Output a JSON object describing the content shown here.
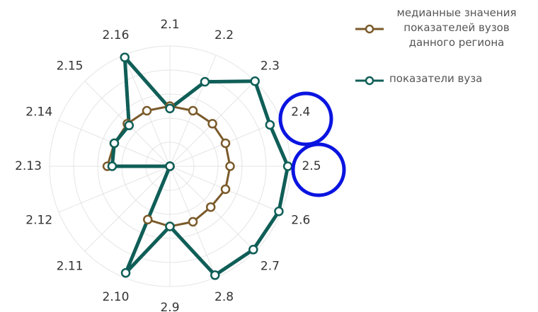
{
  "chart_data": {
    "type": "radar",
    "categories": [
      "2.1",
      "2.2",
      "2.3",
      "2.4",
      "2.5",
      "2.6",
      "2.7",
      "2.8",
      "2.9",
      "2.10",
      "2.11",
      "2.12",
      "2.13",
      "2.14",
      "2.15",
      "2.16"
    ],
    "rlim": [
      0,
      5
    ],
    "grid": true,
    "series": [
      {
        "name": "медианные значения показателей вузов данного региона",
        "color": "#7a5a2a",
        "values": [
          2.5,
          2.5,
          2.5,
          2.5,
          2.5,
          2.5,
          2.4,
          2.5,
          2.5,
          2.4,
          0,
          0,
          2.6,
          2.5,
          2.5,
          2.5
        ]
      },
      {
        "name": "показатели вуза",
        "color": "#0f5e57",
        "values": [
          2.4,
          3.8,
          5,
          4.5,
          4.9,
          4.9,
          4.9,
          4.9,
          2.5,
          4.8,
          0,
          0,
          2.4,
          2.5,
          2.4,
          4.9
        ]
      }
    ]
  }
}
